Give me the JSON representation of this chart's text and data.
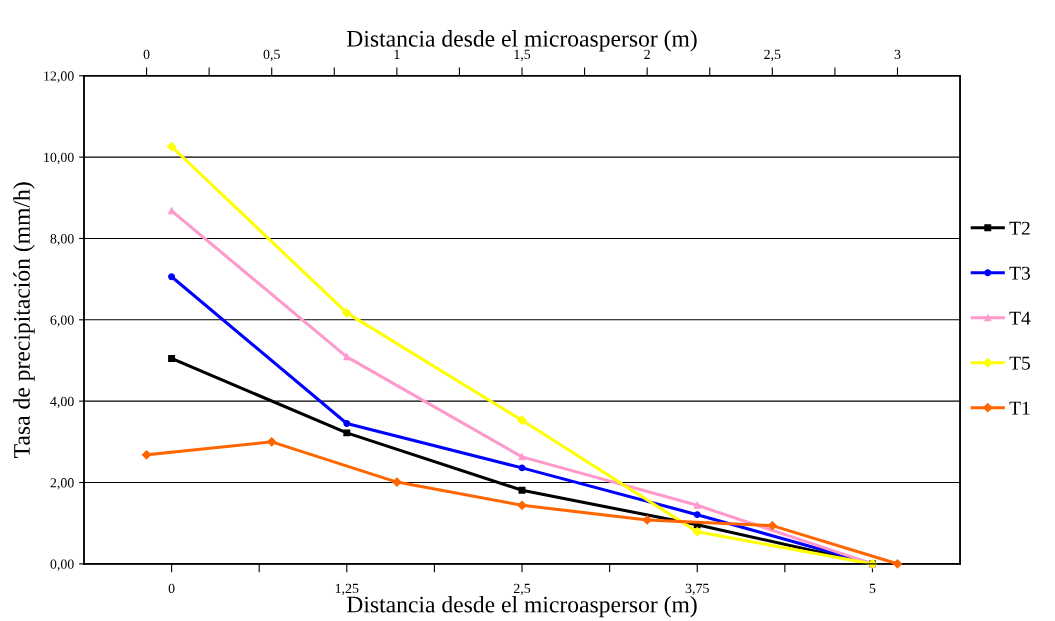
{
  "chart_data": {
    "type": "line",
    "xlabel": "Distancia desde el microaspersor (m)",
    "x2label": "Distancia desde el microaspersor (m)",
    "ylabel": "Tasa de precipitación (mm/h)",
    "xlim": [
      -0.625,
      5.625
    ],
    "xticks": [
      {
        "value": 0,
        "label": "0"
      },
      {
        "value": 0.625,
        "label": null
      },
      {
        "value": 1.25,
        "label": "1,25"
      },
      {
        "value": 1.875,
        "label": null
      },
      {
        "value": 2.5,
        "label": "2,5"
      },
      {
        "value": 3.125,
        "label": null
      },
      {
        "value": 3.75,
        "label": "3,75"
      },
      {
        "value": 4.375,
        "label": null
      },
      {
        "value": 5,
        "label": "5"
      }
    ],
    "x2lim": [
      -0.25,
      3.25
    ],
    "x2ticks": [
      {
        "value": 0,
        "label": "0"
      },
      {
        "value": 0.25,
        "label": null
      },
      {
        "value": 0.5,
        "label": "0,5"
      },
      {
        "value": 0.75,
        "label": null
      },
      {
        "value": 1,
        "label": "1"
      },
      {
        "value": 1.25,
        "label": null
      },
      {
        "value": 1.5,
        "label": "1,5"
      },
      {
        "value": 1.75,
        "label": null
      },
      {
        "value": 2,
        "label": "2"
      },
      {
        "value": 2.25,
        "label": null
      },
      {
        "value": 2.5,
        "label": "2,5"
      },
      {
        "value": 2.75,
        "label": null
      },
      {
        "value": 3,
        "label": "3"
      }
    ],
    "ylim": [
      0,
      12
    ],
    "yticks": [
      {
        "value": 0,
        "label": "0,00"
      },
      {
        "value": 2,
        "label": "2,00"
      },
      {
        "value": 4,
        "label": "4,00"
      },
      {
        "value": 6,
        "label": "6,00"
      },
      {
        "value": 8,
        "label": "8,00"
      },
      {
        "value": 10,
        "label": "10,00"
      },
      {
        "value": 12,
        "label": "12,00"
      }
    ],
    "grid": "y",
    "legend": "right",
    "line_style": "solid",
    "x": [
      0,
      1.25,
      2.5,
      3.75,
      5
    ],
    "series": [
      {
        "name": "T2",
        "color": "#000000",
        "marker": "square",
        "values": [
          5.05,
          3.22,
          1.81,
          0.96,
          0
        ]
      },
      {
        "name": "T3",
        "color": "#0000ff",
        "marker": "circle",
        "values": [
          7.06,
          3.45,
          2.36,
          1.21,
          0
        ]
      },
      {
        "name": "T4",
        "color": "#ff99cc",
        "marker": "triangle",
        "values": [
          8.68,
          5.09,
          2.63,
          1.44,
          0
        ]
      },
      {
        "name": "T5",
        "color": "#ffff00",
        "marker": "diamond",
        "values": [
          10.26,
          6.17,
          3.53,
          0.79,
          0
        ]
      },
      {
        "name": "T1",
        "color": "#ff6600",
        "marker": "diamond",
        "axis": "x2",
        "x": [
          0,
          0.5,
          1,
          1.5,
          2,
          2.5,
          3
        ],
        "values": [
          2.68,
          3.0,
          2.01,
          1.44,
          1.08,
          0.94,
          0
        ]
      }
    ]
  }
}
